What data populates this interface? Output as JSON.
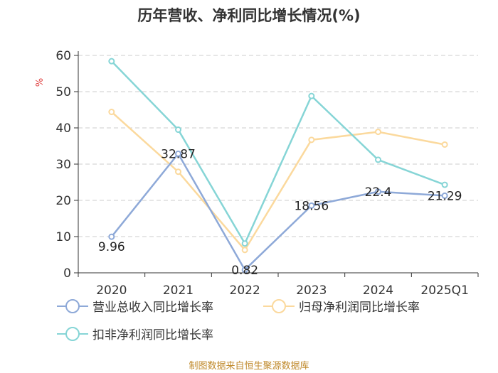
{
  "title": "历年营收、净利同比增长情况(%)",
  "source": "制图数据来自恒生聚源数据库",
  "chart_data": {
    "type": "line",
    "title": "历年营收、净利同比增长情况(%)",
    "ylabel": "%",
    "xlabel": "",
    "ylim": [
      0,
      60
    ],
    "yticks": [
      0,
      10,
      20,
      30,
      40,
      50,
      60
    ],
    "categories": [
      "2020",
      "2021",
      "2022",
      "2023",
      "2024",
      "2025Q1"
    ],
    "grid": true,
    "legend_position": "bottom",
    "series": [
      {
        "name": "营业总收入同比增长率",
        "color": "#8ea9d8",
        "values": [
          9.96,
          32.87,
          0.82,
          18.56,
          22.4,
          21.29
        ],
        "labels": [
          "9.96",
          "32.87",
          "0.82",
          "18.56",
          "22.4",
          "21.29"
        ]
      },
      {
        "name": "归母净利润同比增长率",
        "color": "#fbd99d",
        "values": [
          44.4,
          27.9,
          6.3,
          36.7,
          38.9,
          35.4
        ]
      },
      {
        "name": "扣非净利润同比增长率",
        "color": "#86d5d6",
        "values": [
          58.4,
          39.5,
          8.1,
          48.8,
          31.2,
          24.3
        ]
      }
    ]
  }
}
